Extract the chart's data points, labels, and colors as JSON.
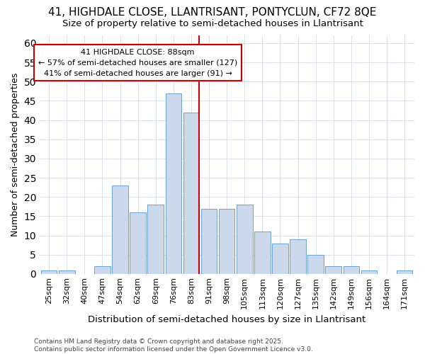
{
  "title_line1": "41, HIGHDALE CLOSE, LLANTRISANT, PONTYCLUN, CF72 8QE",
  "title_line2": "Size of property relative to semi-detached houses in Llantrisant",
  "xlabel": "Distribution of semi-detached houses by size in Llantrisant",
  "ylabel": "Number of semi-detached properties",
  "categories": [
    "25sqm",
    "32sqm",
    "40sqm",
    "47sqm",
    "54sqm",
    "62sqm",
    "69sqm",
    "76sqm",
    "83sqm",
    "91sqm",
    "98sqm",
    "105sqm",
    "113sqm",
    "120sqm",
    "127sqm",
    "135sqm",
    "142sqm",
    "149sqm",
    "156sqm",
    "164sqm",
    "171sqm"
  ],
  "values": [
    1,
    1,
    0,
    2,
    23,
    16,
    18,
    47,
    42,
    17,
    17,
    18,
    11,
    8,
    9,
    5,
    2,
    2,
    1,
    0,
    1
  ],
  "bar_color": "#ccd9ea",
  "bar_edge_color": "#6a9fd8",
  "highlight_color": "#cc0000",
  "annotation_text_line1": "41 HIGHDALE CLOSE: 88sqm",
  "annotation_text_line2": "← 57% of semi-detached houses are smaller (127)",
  "annotation_text_line3": "41% of semi-detached houses are larger (91) →",
  "annotation_box_color": "#ffffff",
  "annotation_box_edge": "#cc0000",
  "footer_text": "Contains HM Land Registry data © Crown copyright and database right 2025.\nContains public sector information licensed under the Open Government Licence v3.0.",
  "ylim": [
    0,
    62
  ],
  "yticks": [
    0,
    5,
    10,
    15,
    20,
    25,
    30,
    35,
    40,
    45,
    50,
    55,
    60
  ],
  "background_color": "#ffffff",
  "grid_color": "#d0dce8",
  "red_line_index": 8,
  "title_fontsize": 11,
  "subtitle_fontsize": 9.5,
  "tick_fontsize": 8,
  "ylabel_fontsize": 9,
  "xlabel_fontsize": 9.5,
  "annotation_fontsize": 8,
  "footer_fontsize": 6.5
}
